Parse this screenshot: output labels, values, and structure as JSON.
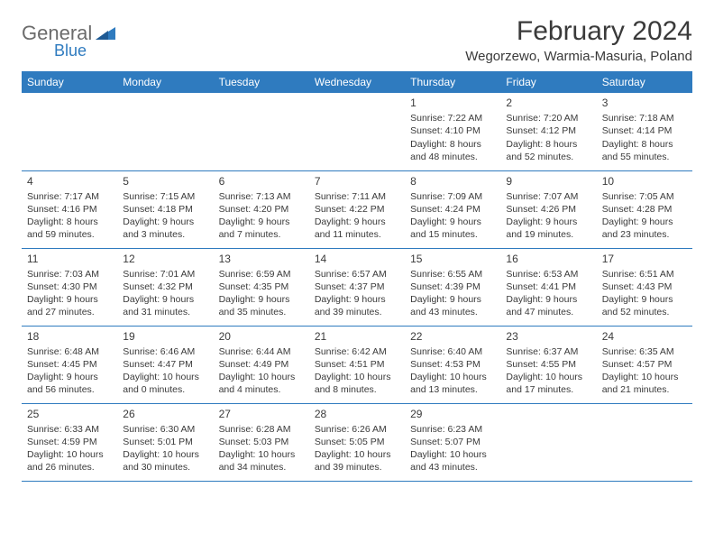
{
  "logo": {
    "text1": "General",
    "text2": "Blue"
  },
  "title": "February 2024",
  "location": "Wegorzewo, Warmia-Masuria, Poland",
  "colors": {
    "header_bg": "#2f7bbf",
    "header_fg": "#ffffff",
    "text": "#3a3a3a",
    "logo_gray": "#6b6b6b",
    "logo_blue": "#2f7bbf",
    "border": "#2f7bbf",
    "page_bg": "#ffffff"
  },
  "weekdays": [
    "Sunday",
    "Monday",
    "Tuesday",
    "Wednesday",
    "Thursday",
    "Friday",
    "Saturday"
  ],
  "weeks": [
    [
      null,
      null,
      null,
      null,
      {
        "n": "1",
        "sr": "7:22 AM",
        "ss": "4:10 PM",
        "dl": "8 hours and 48 minutes."
      },
      {
        "n": "2",
        "sr": "7:20 AM",
        "ss": "4:12 PM",
        "dl": "8 hours and 52 minutes."
      },
      {
        "n": "3",
        "sr": "7:18 AM",
        "ss": "4:14 PM",
        "dl": "8 hours and 55 minutes."
      }
    ],
    [
      {
        "n": "4",
        "sr": "7:17 AM",
        "ss": "4:16 PM",
        "dl": "8 hours and 59 minutes."
      },
      {
        "n": "5",
        "sr": "7:15 AM",
        "ss": "4:18 PM",
        "dl": "9 hours and 3 minutes."
      },
      {
        "n": "6",
        "sr": "7:13 AM",
        "ss": "4:20 PM",
        "dl": "9 hours and 7 minutes."
      },
      {
        "n": "7",
        "sr": "7:11 AM",
        "ss": "4:22 PM",
        "dl": "9 hours and 11 minutes."
      },
      {
        "n": "8",
        "sr": "7:09 AM",
        "ss": "4:24 PM",
        "dl": "9 hours and 15 minutes."
      },
      {
        "n": "9",
        "sr": "7:07 AM",
        "ss": "4:26 PM",
        "dl": "9 hours and 19 minutes."
      },
      {
        "n": "10",
        "sr": "7:05 AM",
        "ss": "4:28 PM",
        "dl": "9 hours and 23 minutes."
      }
    ],
    [
      {
        "n": "11",
        "sr": "7:03 AM",
        "ss": "4:30 PM",
        "dl": "9 hours and 27 minutes."
      },
      {
        "n": "12",
        "sr": "7:01 AM",
        "ss": "4:32 PM",
        "dl": "9 hours and 31 minutes."
      },
      {
        "n": "13",
        "sr": "6:59 AM",
        "ss": "4:35 PM",
        "dl": "9 hours and 35 minutes."
      },
      {
        "n": "14",
        "sr": "6:57 AM",
        "ss": "4:37 PM",
        "dl": "9 hours and 39 minutes."
      },
      {
        "n": "15",
        "sr": "6:55 AM",
        "ss": "4:39 PM",
        "dl": "9 hours and 43 minutes."
      },
      {
        "n": "16",
        "sr": "6:53 AM",
        "ss": "4:41 PM",
        "dl": "9 hours and 47 minutes."
      },
      {
        "n": "17",
        "sr": "6:51 AM",
        "ss": "4:43 PM",
        "dl": "9 hours and 52 minutes."
      }
    ],
    [
      {
        "n": "18",
        "sr": "6:48 AM",
        "ss": "4:45 PM",
        "dl": "9 hours and 56 minutes."
      },
      {
        "n": "19",
        "sr": "6:46 AM",
        "ss": "4:47 PM",
        "dl": "10 hours and 0 minutes."
      },
      {
        "n": "20",
        "sr": "6:44 AM",
        "ss": "4:49 PM",
        "dl": "10 hours and 4 minutes."
      },
      {
        "n": "21",
        "sr": "6:42 AM",
        "ss": "4:51 PM",
        "dl": "10 hours and 8 minutes."
      },
      {
        "n": "22",
        "sr": "6:40 AM",
        "ss": "4:53 PM",
        "dl": "10 hours and 13 minutes."
      },
      {
        "n": "23",
        "sr": "6:37 AM",
        "ss": "4:55 PM",
        "dl": "10 hours and 17 minutes."
      },
      {
        "n": "24",
        "sr": "6:35 AM",
        "ss": "4:57 PM",
        "dl": "10 hours and 21 minutes."
      }
    ],
    [
      {
        "n": "25",
        "sr": "6:33 AM",
        "ss": "4:59 PM",
        "dl": "10 hours and 26 minutes."
      },
      {
        "n": "26",
        "sr": "6:30 AM",
        "ss": "5:01 PM",
        "dl": "10 hours and 30 minutes."
      },
      {
        "n": "27",
        "sr": "6:28 AM",
        "ss": "5:03 PM",
        "dl": "10 hours and 34 minutes."
      },
      {
        "n": "28",
        "sr": "6:26 AM",
        "ss": "5:05 PM",
        "dl": "10 hours and 39 minutes."
      },
      {
        "n": "29",
        "sr": "6:23 AM",
        "ss": "5:07 PM",
        "dl": "10 hours and 43 minutes."
      },
      null,
      null
    ]
  ],
  "labels": {
    "sunrise": "Sunrise: ",
    "sunset": "Sunset: ",
    "daylight": "Daylight: "
  }
}
